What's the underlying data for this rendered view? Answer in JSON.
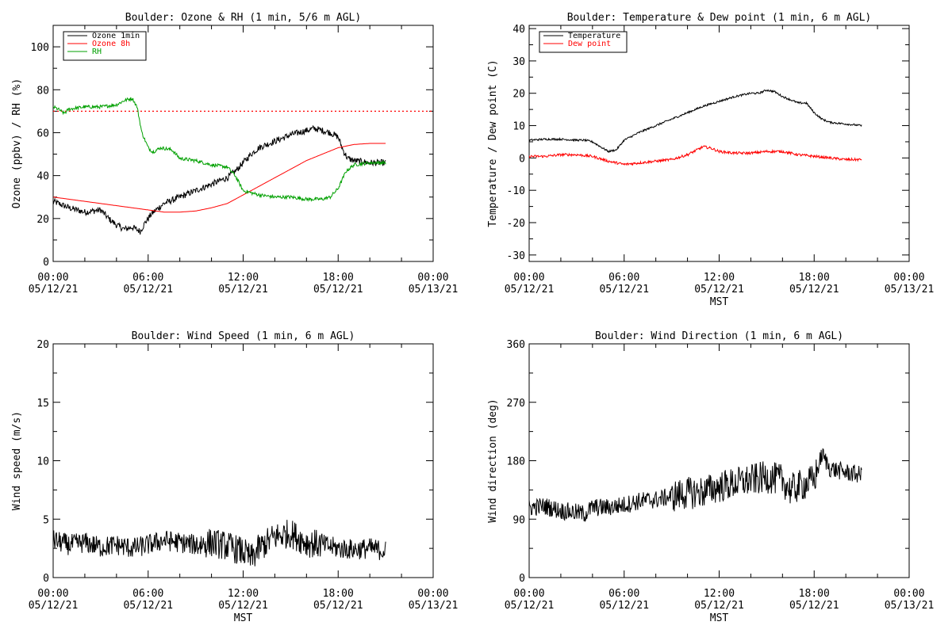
{
  "chart_data": [
    {
      "type": "line",
      "title": "Boulder: Ozone & RH (1 min, 5/6 m AGL)",
      "xlabel": "",
      "ylabel": "Ozone (ppbv) / RH (%)",
      "xlim": [
        0,
        24
      ],
      "ylim": [
        0,
        110
      ],
      "yticks": [
        0,
        20,
        40,
        60,
        80,
        100
      ],
      "xticks": [
        "00:00",
        "06:00",
        "12:00",
        "18:00",
        "00:00"
      ],
      "xtick_dates": [
        "05/12/21",
        "05/12/21",
        "05/12/21",
        "05/12/21",
        "05/13/21"
      ],
      "legend_position": "top-left",
      "reference_line": {
        "y": 70,
        "color": "#ff0000",
        "style": "dotted"
      },
      "series": [
        {
          "name": "Ozone 1min",
          "color": "#000000",
          "noise": 1.5,
          "x": [
            0,
            1,
            2,
            3,
            3.5,
            4,
            4.5,
            5,
            5.5,
            5.8,
            6.2,
            6.5,
            7,
            8,
            9,
            10,
            11,
            11.5,
            12,
            12.5,
            13,
            14,
            15,
            16,
            16.5,
            17,
            17.5,
            18,
            18.3,
            18.6,
            19,
            20,
            21
          ],
          "y": [
            28,
            25,
            23,
            24,
            20,
            17,
            15,
            16,
            14,
            18,
            22,
            24,
            27,
            30,
            33,
            36,
            39,
            42,
            46,
            50,
            53,
            56,
            59,
            61,
            62,
            61,
            60,
            58,
            52,
            48,
            47,
            46,
            46
          ]
        },
        {
          "name": "Ozone 8h",
          "color": "#ff0000",
          "noise": 0,
          "x": [
            0,
            2,
            4,
            6,
            7,
            8,
            9,
            10,
            11,
            12,
            13,
            14,
            15,
            16,
            17,
            18,
            19,
            20,
            21
          ],
          "y": [
            30,
            28,
            26,
            24,
            23,
            23,
            23.5,
            25,
            27,
            31,
            35,
            39,
            43,
            47,
            50,
            53,
            54.5,
            55,
            55
          ]
        },
        {
          "name": "RH",
          "color": "#00a000",
          "noise": 0.8,
          "x": [
            0,
            0.3,
            0.7,
            1,
            2,
            3,
            4,
            4.5,
            5,
            5.3,
            5.6,
            6,
            6.3,
            6.8,
            7.5,
            8,
            9,
            10,
            11,
            11.5,
            12,
            13,
            14,
            15,
            16,
            17,
            17.5,
            18,
            18.5,
            19,
            20,
            21
          ],
          "y": [
            72,
            71,
            69,
            71,
            72,
            72,
            73,
            75,
            76,
            72,
            60,
            53,
            51,
            53,
            52,
            48,
            47,
            45,
            44,
            40,
            33,
            31,
            30,
            30,
            29,
            29,
            30,
            34,
            42,
            45,
            46,
            46
          ]
        }
      ]
    },
    {
      "type": "line",
      "title": "Boulder: Temperature & Dew point (1 min, 6 m AGL)",
      "xlabel": "MST",
      "ylabel": "Temperature / Dew point (C)",
      "xlim": [
        0,
        24
      ],
      "ylim": [
        -32,
        41
      ],
      "yticks": [
        -30,
        -20,
        -10,
        0,
        10,
        20,
        30,
        40
      ],
      "xticks": [
        "00:00",
        "06:00",
        "12:00",
        "18:00",
        "00:00"
      ],
      "xtick_dates": [
        "05/12/21",
        "05/12/21",
        "05/12/21",
        "05/12/21",
        "05/13/21"
      ],
      "legend_position": "top-left",
      "series": [
        {
          "name": "Temperature",
          "color": "#000000",
          "noise": 0.3,
          "x": [
            0,
            1,
            2,
            3,
            3.5,
            4,
            4.5,
            5,
            5.5,
            6,
            7,
            8,
            9,
            10,
            11,
            12,
            13,
            14,
            14.5,
            15,
            15.5,
            16,
            16.5,
            17,
            17.5,
            18,
            18.5,
            19,
            20,
            21
          ],
          "y": [
            5.5,
            5.8,
            5.8,
            5.5,
            5.5,
            5,
            3.5,
            2,
            2.5,
            5.5,
            8,
            10,
            12,
            14,
            16,
            17.5,
            19,
            20,
            20,
            21,
            20.5,
            19,
            18,
            17,
            17,
            14,
            12,
            11,
            10.5,
            10
          ]
        },
        {
          "name": "Dew point",
          "color": "#ff0000",
          "noise": 0.4,
          "x": [
            0,
            1,
            2,
            3,
            4,
            5,
            6,
            7,
            8,
            9,
            10,
            11,
            11.5,
            12,
            13,
            14,
            15,
            16,
            17,
            18,
            19,
            20,
            21
          ],
          "y": [
            0.5,
            0.5,
            1,
            1,
            0.5,
            -1,
            -2,
            -1.5,
            -1,
            -0.5,
            1,
            3.5,
            3,
            2,
            1.5,
            1.5,
            2,
            2,
            1,
            0.5,
            0,
            -0.5,
            -0.5
          ]
        }
      ]
    },
    {
      "type": "line",
      "title": "Boulder: Wind Speed (1 min, 6 m AGL)",
      "xlabel": "MST",
      "ylabel": "Wind speed (m/s)",
      "xlim": [
        0,
        24
      ],
      "ylim": [
        0,
        20
      ],
      "yticks": [
        0,
        5,
        10,
        15,
        20
      ],
      "xticks": [
        "00:00",
        "06:00",
        "12:00",
        "18:00",
        "00:00"
      ],
      "xtick_dates": [
        "05/12/21",
        "05/12/21",
        "05/12/21",
        "05/12/21",
        "05/13/21"
      ],
      "series": [
        {
          "name": "",
          "color": "#000000",
          "noise": 0.9,
          "x": [
            0,
            1,
            2,
            3,
            4,
            5,
            6,
            7,
            8,
            9,
            10,
            11,
            12,
            12.5,
            13,
            14,
            15,
            16,
            17,
            18,
            19,
            20,
            21
          ],
          "y": [
            3.2,
            2.8,
            3,
            2.6,
            2.8,
            2.5,
            2.8,
            3.2,
            3,
            2.8,
            3,
            2.7,
            2.2,
            1.6,
            2.5,
            3.5,
            3.8,
            3,
            2.8,
            2.5,
            2.4,
            2.5,
            2.3
          ]
        }
      ]
    },
    {
      "type": "line",
      "title": "Boulder: Wind Direction (1 min, 6 m AGL)",
      "xlabel": "MST",
      "ylabel": "Wind direction (deg)",
      "xlim": [
        0,
        24
      ],
      "ylim": [
        0,
        360
      ],
      "yticks": [
        0,
        90,
        180,
        270,
        360
      ],
      "xticks": [
        "00:00",
        "06:00",
        "12:00",
        "18:00",
        "00:00"
      ],
      "xtick_dates": [
        "05/12/21",
        "05/12/21",
        "05/12/21",
        "05/12/21",
        "05/13/21"
      ],
      "series": [
        {
          "name": "",
          "color": "#000000",
          "noise": 14,
          "x": [
            0,
            1,
            2,
            3,
            3.5,
            4,
            5,
            6,
            7,
            8,
            9,
            10,
            11,
            12,
            13,
            14,
            15,
            16,
            16.5,
            17,
            18,
            18.5,
            19,
            20,
            21
          ],
          "y": [
            108,
            110,
            103,
            100,
            98,
            108,
            108,
            112,
            118,
            120,
            125,
            130,
            132,
            140,
            145,
            150,
            155,
            150,
            135,
            140,
            150,
            190,
            168,
            162,
            158
          ]
        }
      ]
    }
  ]
}
